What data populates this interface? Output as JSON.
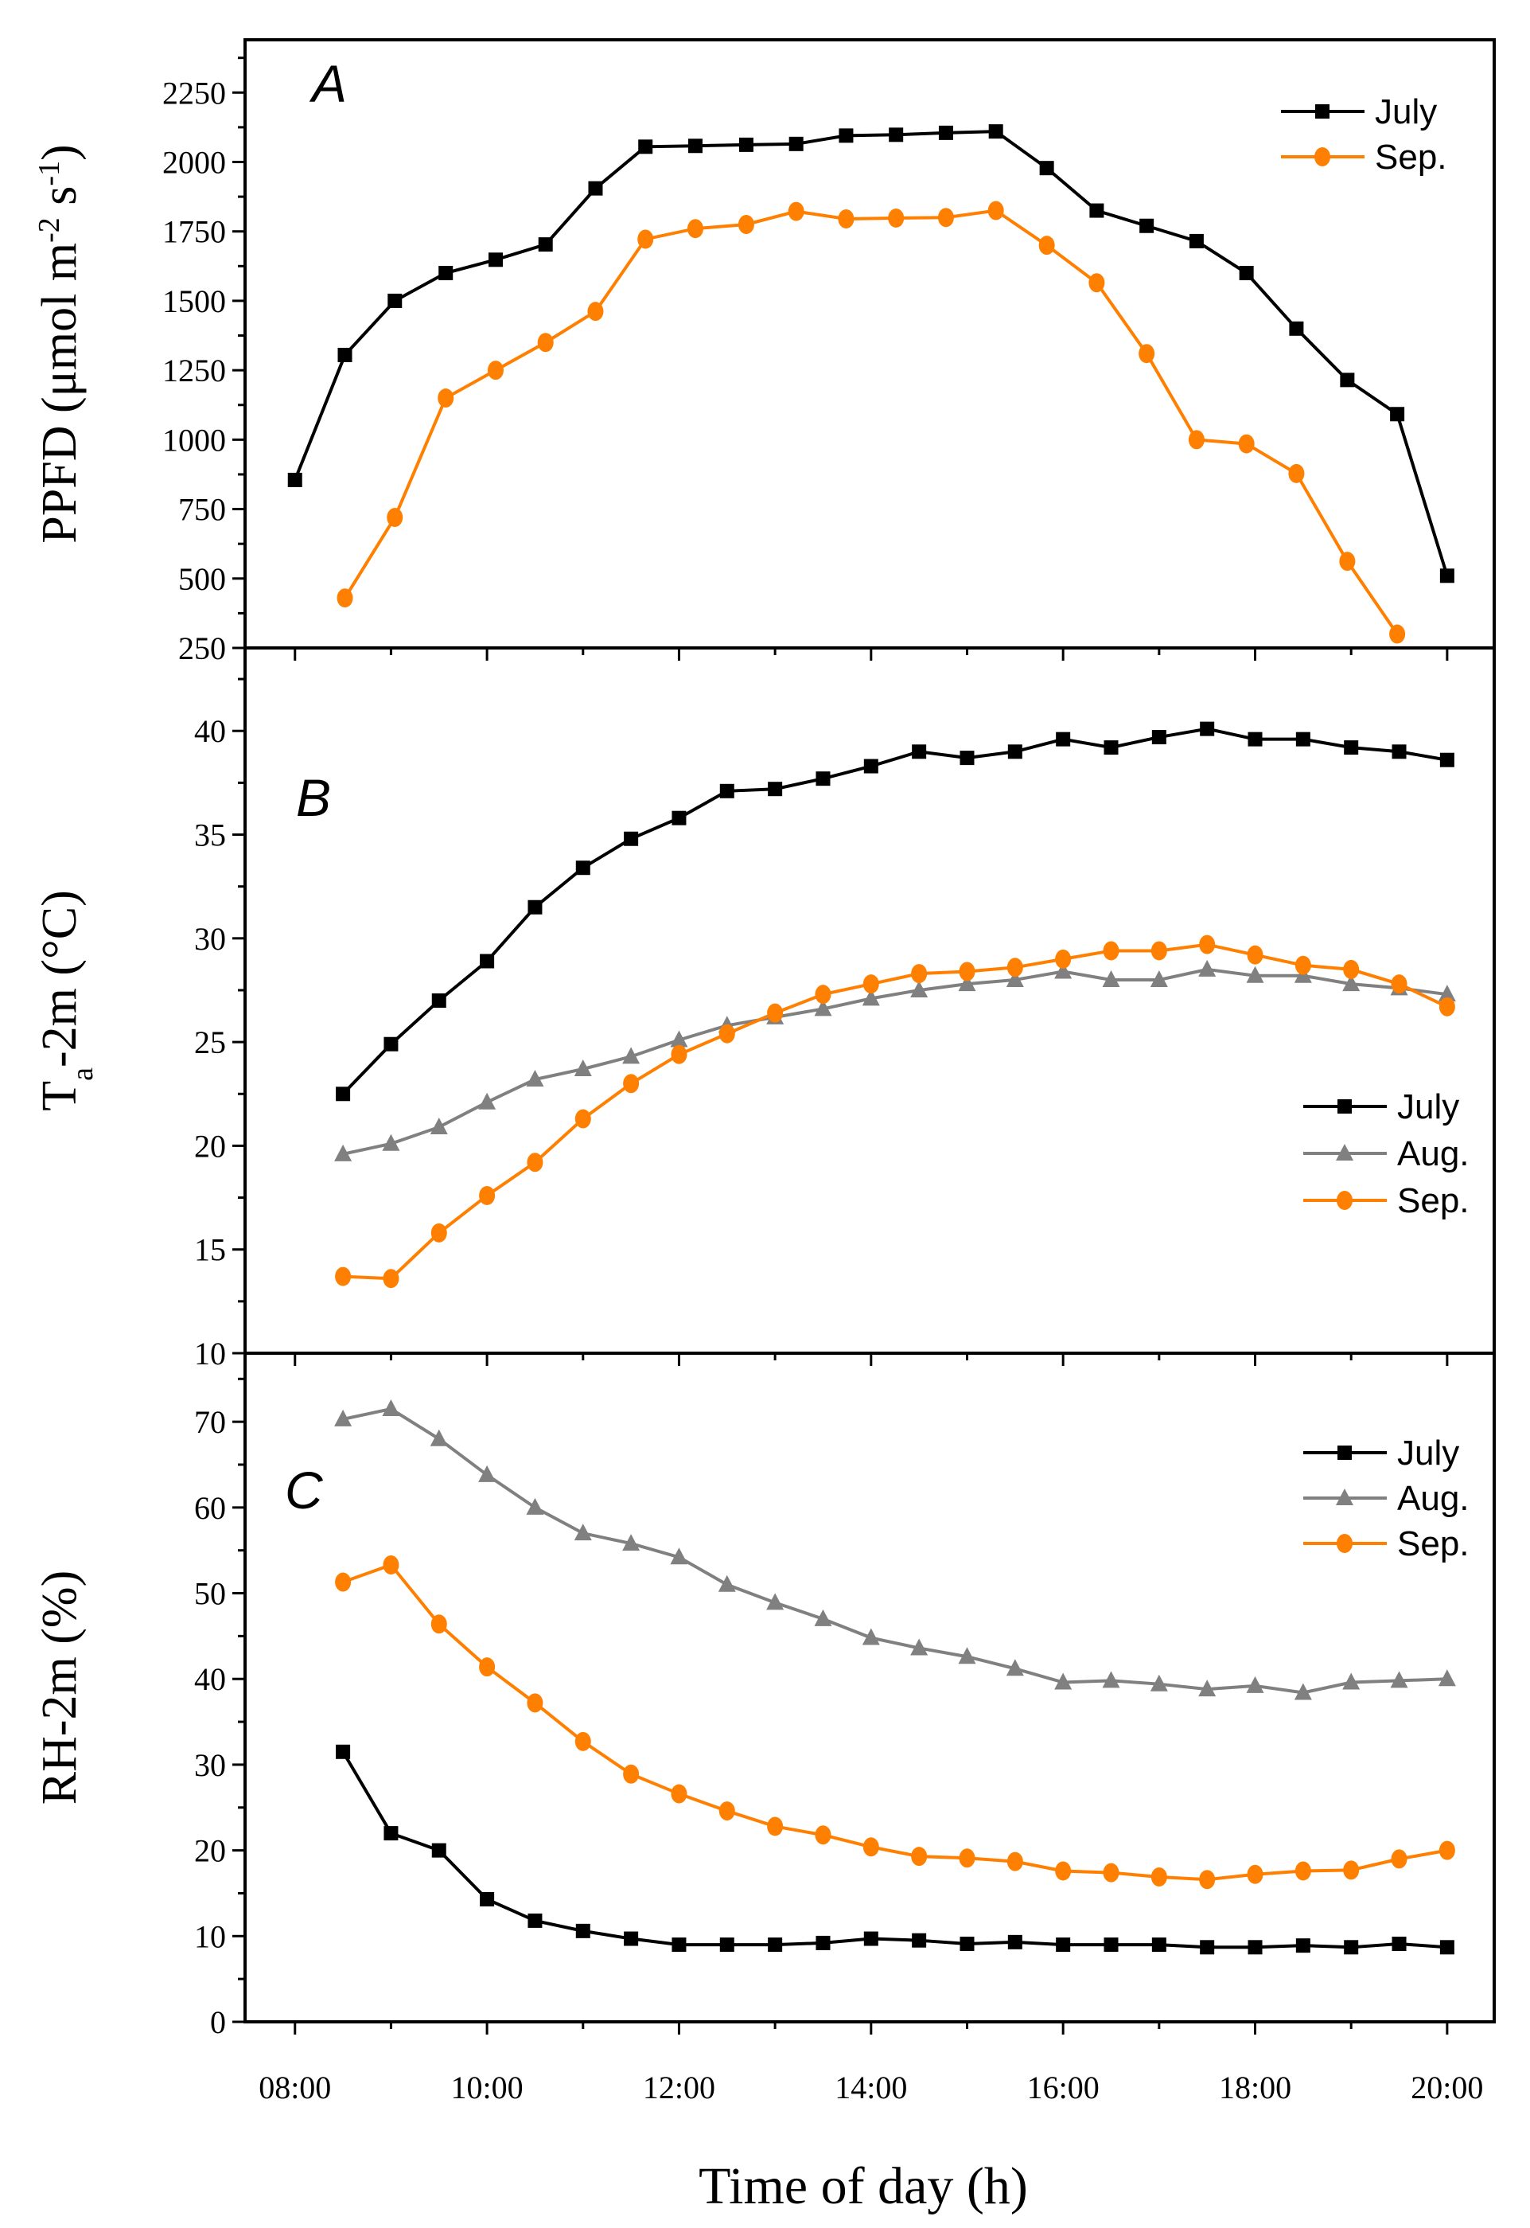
{
  "colors": {
    "july": "#000000",
    "aug": "#808080",
    "sep": "#ff7f00"
  },
  "chart_data": [
    {
      "type": "line",
      "panel_label": "A",
      "ylabel": {
        "main": "PPFD (μmol m",
        "sup1": "-2",
        "mid": " s",
        "sup2": "-1",
        "end": ")"
      },
      "xlabel": "Time of day (h)",
      "ylim": [
        250,
        2440
      ],
      "yticks": [
        250,
        500,
        750,
        1000,
        1250,
        1500,
        1750,
        2000,
        2250
      ],
      "yminor": 125,
      "legend_position": "top-right",
      "series": [
        {
          "name": "July",
          "key": "july",
          "marker": "square",
          "x": [
            8.0,
            8.52,
            9.04,
            9.57,
            10.09,
            10.61,
            11.13,
            11.65,
            12.17,
            12.7,
            13.22,
            13.74,
            14.26,
            14.78,
            15.3,
            15.83,
            16.35,
            16.87,
            17.39,
            17.91,
            18.43,
            18.96,
            19.48,
            20.0
          ],
          "values": [
            855,
            1305,
            1500,
            1600,
            1648,
            1703,
            1905,
            2055,
            2058,
            2062,
            2065,
            2095,
            2098,
            2105,
            2110,
            1978,
            1825,
            1770,
            1715,
            1600,
            1400,
            1215,
            1092,
            510
          ]
        },
        {
          "name": "Sep.",
          "key": "sep",
          "marker": "circle",
          "x": [
            8.52,
            9.04,
            9.57,
            10.09,
            10.61,
            11.13,
            11.65,
            12.17,
            12.7,
            13.22,
            13.74,
            14.26,
            14.78,
            15.3,
            15.83,
            16.35,
            16.87,
            17.39,
            17.91,
            18.43,
            18.96,
            19.48
          ],
          "values": [
            430,
            720,
            1150,
            1250,
            1350,
            1462,
            1722,
            1760,
            1775,
            1822,
            1795,
            1798,
            1800,
            1825,
            1700,
            1565,
            1310,
            1000,
            985,
            878,
            562,
            300
          ]
        }
      ]
    },
    {
      "type": "line",
      "panel_label": "B",
      "ylabel": {
        "main": "T",
        "sub": "a",
        "end": "-2m (°C)"
      },
      "ylim": [
        10,
        44
      ],
      "yticks": [
        10,
        15,
        20,
        25,
        30,
        35,
        40
      ],
      "yminor": 2.5,
      "legend_position": "center-right",
      "series": [
        {
          "name": "July",
          "key": "july",
          "marker": "square",
          "x": [
            8.5,
            9,
            9.5,
            10,
            10.5,
            11,
            11.5,
            12,
            12.5,
            13,
            13.5,
            14,
            14.5,
            15,
            15.5,
            16,
            16.5,
            17,
            17.5,
            18,
            18.5,
            19,
            19.5,
            20
          ],
          "values": [
            22.5,
            24.9,
            27.0,
            28.9,
            31.5,
            33.4,
            34.8,
            35.8,
            37.1,
            37.2,
            37.7,
            38.3,
            39.0,
            38.7,
            39.0,
            39.6,
            39.2,
            39.7,
            40.1,
            39.6,
            39.6,
            39.2,
            39.0,
            38.6
          ]
        },
        {
          "name": "Aug.",
          "key": "aug",
          "marker": "triangle",
          "x": [
            8.5,
            9,
            9.5,
            10,
            10.5,
            11,
            11.5,
            12,
            12.5,
            13,
            13.5,
            14,
            14.5,
            15,
            15.5,
            16,
            16.5,
            17,
            17.5,
            18,
            18.5,
            19,
            19.5,
            20
          ],
          "values": [
            19.6,
            20.1,
            20.9,
            22.1,
            23.2,
            23.7,
            24.3,
            25.1,
            25.8,
            26.2,
            26.6,
            27.1,
            27.5,
            27.8,
            28.0,
            28.4,
            28.0,
            28.0,
            28.5,
            28.2,
            28.2,
            27.8,
            27.6,
            27.3
          ]
        },
        {
          "name": "Sep.",
          "key": "sep",
          "marker": "circle",
          "x": [
            8.5,
            9,
            9.5,
            10,
            10.5,
            11,
            11.5,
            12,
            12.5,
            13,
            13.5,
            14,
            14.5,
            15,
            15.5,
            16,
            16.5,
            17,
            17.5,
            18,
            18.5,
            19,
            19.5,
            20
          ],
          "values": [
            13.7,
            13.6,
            15.8,
            17.6,
            19.2,
            21.3,
            23.0,
            24.4,
            25.4,
            26.4,
            27.3,
            27.8,
            28.3,
            28.4,
            28.6,
            29.0,
            29.4,
            29.4,
            29.7,
            29.2,
            28.7,
            28.5,
            27.8,
            26.7
          ]
        }
      ]
    },
    {
      "type": "line",
      "panel_label": "C",
      "ylabel": {
        "main": "RH-2m (%)"
      },
      "ylim": [
        0,
        78
      ],
      "yticks": [
        0,
        10,
        20,
        30,
        40,
        50,
        60,
        70
      ],
      "yminor": 5,
      "legend_position": "top-right",
      "xticks": [
        "08:00",
        "10:00",
        "12:00",
        "14:00",
        "16:00",
        "18:00",
        "20:00"
      ],
      "xlim": [
        7.48,
        20.49
      ],
      "series": [
        {
          "name": "July",
          "key": "july",
          "marker": "square",
          "x": [
            8.5,
            9,
            9.5,
            10,
            10.5,
            11,
            11.5,
            12,
            12.5,
            13,
            13.5,
            14,
            14.5,
            15,
            15.5,
            16,
            16.5,
            17,
            17.5,
            18,
            18.5,
            19,
            19.5,
            20
          ],
          "values": [
            31.5,
            22.0,
            20.0,
            14.3,
            11.8,
            10.6,
            9.7,
            9.0,
            9.0,
            9.0,
            9.2,
            9.7,
            9.5,
            9.1,
            9.3,
            9.0,
            9.0,
            9.0,
            8.7,
            8.7,
            8.9,
            8.7,
            9.1,
            8.7
          ]
        },
        {
          "name": "Aug.",
          "key": "aug",
          "marker": "triangle",
          "x": [
            8.5,
            9,
            9.5,
            10,
            10.5,
            11,
            11.5,
            12,
            12.5,
            13,
            13.5,
            14,
            14.5,
            15,
            15.5,
            16,
            16.5,
            17,
            17.5,
            18,
            18.5,
            19,
            19.5,
            20
          ],
          "values": [
            70.3,
            71.5,
            68.0,
            63.8,
            60.0,
            57.0,
            55.8,
            54.2,
            51.0,
            48.9,
            47.0,
            44.8,
            43.6,
            42.6,
            41.2,
            39.6,
            39.8,
            39.4,
            38.8,
            39.2,
            38.4,
            39.6,
            39.8,
            40.0
          ]
        },
        {
          "name": "Sep.",
          "key": "sep",
          "marker": "circle",
          "x": [
            8.5,
            9,
            9.5,
            10,
            10.5,
            11,
            11.5,
            12,
            12.5,
            13,
            13.5,
            14,
            14.5,
            15,
            15.5,
            16,
            16.5,
            17,
            17.5,
            18,
            18.5,
            19,
            19.5,
            20
          ],
          "values": [
            51.3,
            53.3,
            46.4,
            41.4,
            37.2,
            32.7,
            28.9,
            26.6,
            24.6,
            22.8,
            21.8,
            20.4,
            19.3,
            19.1,
            18.7,
            17.6,
            17.4,
            16.9,
            16.6,
            17.2,
            17.6,
            17.7,
            19.0,
            20.0
          ]
        }
      ]
    }
  ]
}
